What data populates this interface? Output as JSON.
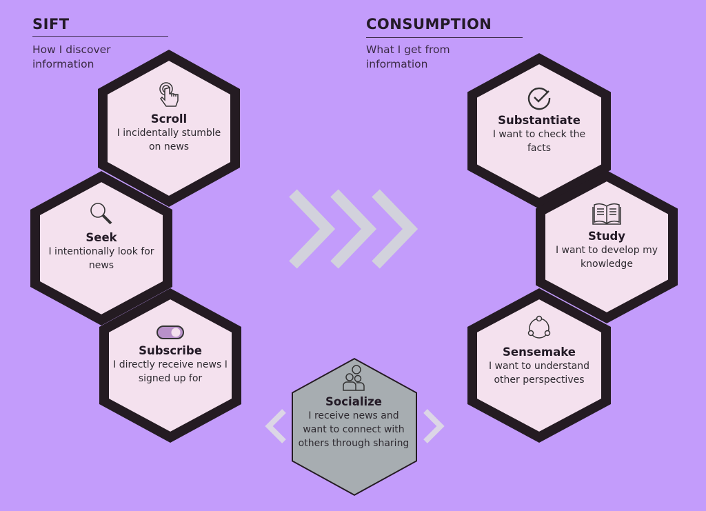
{
  "sift": {
    "title": "SIFT",
    "subtitle": "How I discover information"
  },
  "consumption": {
    "title": "CONSUMPTION",
    "subtitle": "What I get from information"
  },
  "hexagons": [
    {
      "id": "scroll",
      "title": "Scroll",
      "desc": "I incidentally stumble on news",
      "icon": "tap-hand-icon"
    },
    {
      "id": "seek",
      "title": "Seek",
      "desc": "I intentionally look for news",
      "icon": "magnifier-icon"
    },
    {
      "id": "subscribe",
      "title": "Subscribe",
      "desc": "I directly receive news I signed up for",
      "icon": "toggle-icon"
    },
    {
      "id": "substantiate",
      "title": "Substantiate",
      "desc": "I want to check the facts",
      "icon": "check-circle-icon"
    },
    {
      "id": "study",
      "title": "Study",
      "desc": "I want to develop my knowledge",
      "icon": "open-book-icon"
    },
    {
      "id": "sensemake",
      "title": "Sensemake",
      "desc": "I want to understand other perspectives",
      "icon": "cycle-icon"
    },
    {
      "id": "socialize",
      "title": "Socialize",
      "desc": "I receive news and want to connect with others through sharing",
      "icon": "people-icon"
    }
  ],
  "colors": {
    "background": "#c39cfb",
    "hex_fill": "#f4e1ee",
    "hex_border": "#241b22",
    "socialize_fill": "#a7adb1",
    "chevron": "#d2d2dc"
  }
}
